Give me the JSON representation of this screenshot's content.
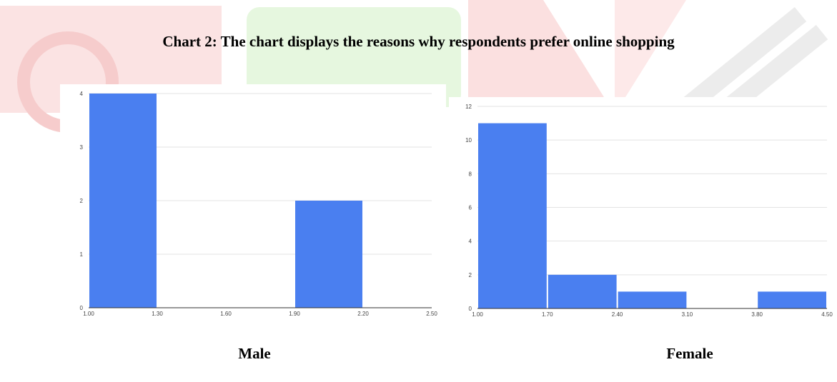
{
  "title": "Chart 2: The chart displays the reasons why respondents prefer online shopping",
  "captions": {
    "male": "Male",
    "female": "Female"
  },
  "colors": {
    "bar": "#4a7ff0",
    "grid": "#e3e3e3",
    "axis": "#333333",
    "tick_text": "#444444"
  },
  "chart_data": [
    {
      "type": "bar",
      "title": "",
      "xlabel": "",
      "ylabel": "",
      "x_ticks": [
        "1.00",
        "1.30",
        "1.60",
        "1.90",
        "2.20",
        "2.50"
      ],
      "x_range": [
        1.0,
        2.5
      ],
      "y_ticks": [
        "0",
        "1",
        "2",
        "3",
        "4"
      ],
      "ylim": [
        0,
        4
      ],
      "bins": [
        {
          "start": 1.0,
          "end": 1.3,
          "value": 4
        },
        {
          "start": 1.3,
          "end": 1.6,
          "value": 0
        },
        {
          "start": 1.6,
          "end": 1.9,
          "value": 0
        },
        {
          "start": 1.9,
          "end": 2.2,
          "value": 2
        },
        {
          "start": 2.2,
          "end": 2.5,
          "value": 0
        }
      ],
      "grid": true
    },
    {
      "type": "bar",
      "title": "",
      "xlabel": "",
      "ylabel": "",
      "x_ticks": [
        "1.00",
        "1.70",
        "2.40",
        "3.10",
        "3.80",
        "4.50"
      ],
      "x_range": [
        1.0,
        4.5
      ],
      "y_ticks": [
        "0",
        "2",
        "4",
        "6",
        "8",
        "10",
        "12"
      ],
      "ylim": [
        0,
        12
      ],
      "bins": [
        {
          "start": 1.0,
          "end": 1.7,
          "value": 11
        },
        {
          "start": 1.7,
          "end": 2.4,
          "value": 2
        },
        {
          "start": 2.4,
          "end": 3.1,
          "value": 1
        },
        {
          "start": 3.1,
          "end": 3.8,
          "value": 0
        },
        {
          "start": 3.8,
          "end": 4.5,
          "value": 1
        }
      ],
      "grid": true
    }
  ]
}
